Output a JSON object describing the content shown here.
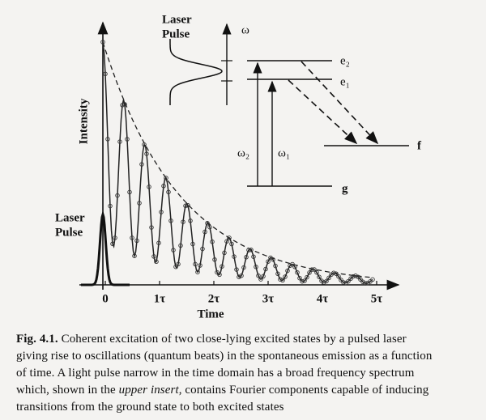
{
  "figure": {
    "y_axis_label": "Intensity",
    "x_axis_label": "Time",
    "x_tick_labels": [
      "0",
      "1τ",
      "2τ",
      "3τ",
      "4τ",
      "5τ"
    ],
    "pulse_label": [
      "Laser",
      "Pulse"
    ],
    "insert": {
      "pulse_label": [
        "Laser",
        "Pulse"
      ],
      "axis_label": "ω",
      "levels": {
        "e2": "e₂",
        "e1": "e₁",
        "f": "f",
        "g": "g"
      },
      "transitions": {
        "omega2": "ω₂",
        "omega1": "ω₁"
      }
    }
  },
  "caption": {
    "label": "Fig. 4.1.",
    "lines": [
      "Coherent excitation of two close-lying excited states by a pulsed laser",
      "giving rise to oscillations (quantum beats) in the spontaneous emission as a function",
      "of time. A light pulse narrow in the time domain has a broad frequency spectrum",
      {
        "before": "which, shown in the",
        "emphasis": "upper insert",
        "after": ", contains Fourier components capable of inducing"
      },
      "transitions from the ground state to both excited states"
    ]
  }
}
